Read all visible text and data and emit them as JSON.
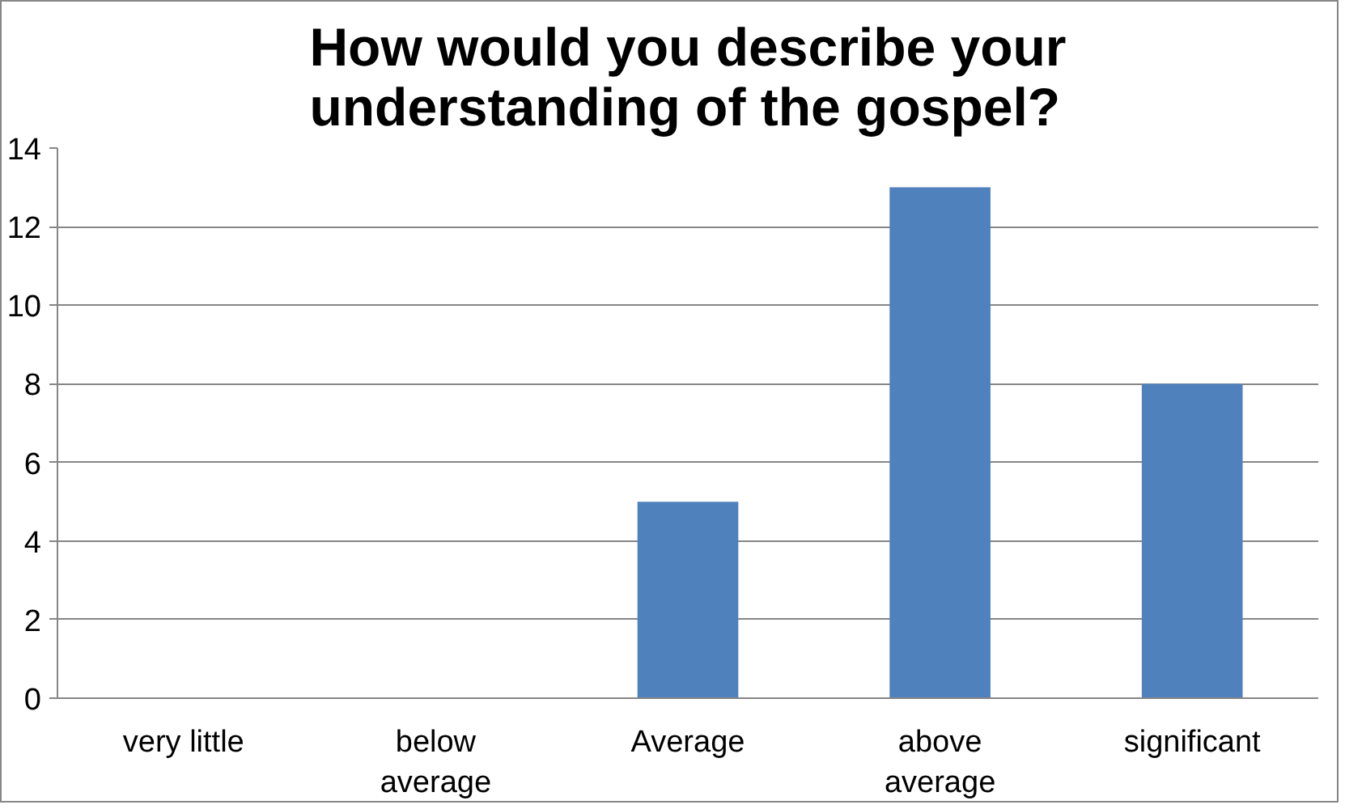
{
  "chart_data": {
    "type": "bar",
    "title": "How would you describe your understanding of the gospel?",
    "categories": [
      "very little",
      "below average",
      "Average",
      "above average",
      "significant"
    ],
    "values": [
      0,
      0,
      5,
      13,
      8
    ],
    "color": "#4f81bd",
    "ylim": [
      0,
      14
    ],
    "yticks": [
      0,
      2,
      4,
      6,
      8,
      10,
      12,
      14
    ],
    "grid": "y"
  }
}
